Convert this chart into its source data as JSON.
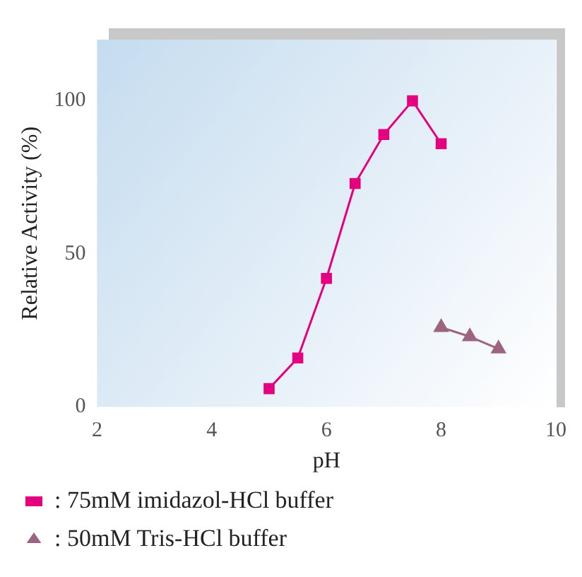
{
  "chart_data": {
    "type": "line",
    "xlabel": "pH",
    "ylabel": "Relative Activity (%)",
    "xlim": [
      2,
      10
    ],
    "xticks": [
      2,
      4,
      6,
      8,
      10
    ],
    "ylim": [
      0,
      120
    ],
    "yticks": [
      0,
      50,
      100
    ],
    "grid": false,
    "legend": "bottom",
    "series": [
      {
        "name": ": 75mM imidazol-HCl buffer",
        "color": "#e4007f",
        "marker": "square",
        "x": [
          5,
          5.5,
          6,
          6.5,
          7,
          7.5,
          8
        ],
        "values": [
          6,
          16,
          42,
          73,
          89,
          100,
          86
        ]
      },
      {
        "name": ": 50mM Tris-HCl buffer",
        "color": "#9c6480",
        "marker": "triangle",
        "x": [
          8,
          8.5,
          9
        ],
        "values": [
          26,
          23,
          19
        ]
      }
    ]
  }
}
